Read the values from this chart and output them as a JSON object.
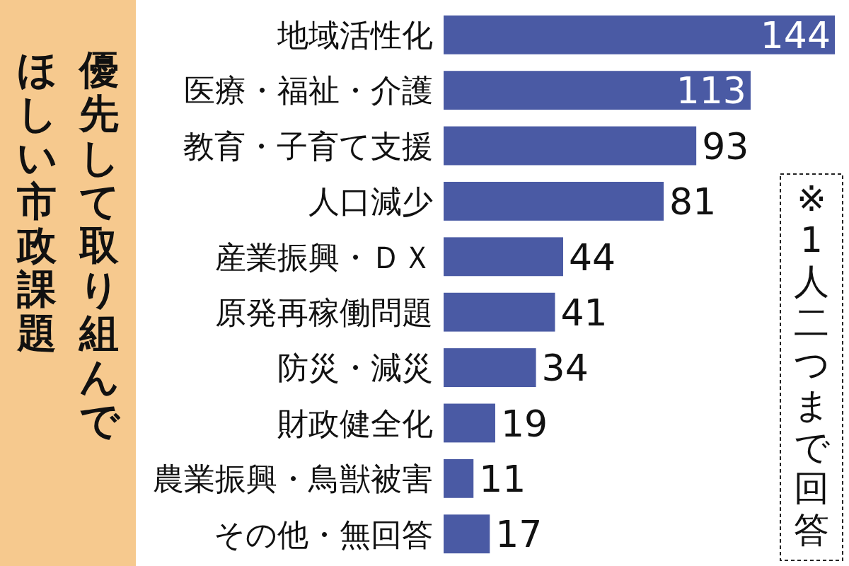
{
  "chart_data": {
    "type": "bar",
    "orientation": "horizontal",
    "title": "優先して取り組んで",
    "subtitle": "ほしい市政課題",
    "categories": [
      "地域活性化",
      "医療・福祉・介護",
      "教育・子育て支援",
      "人口減少",
      "産業振興・ＤＸ",
      "原発再稼働問題",
      "防災・減災",
      "財政健全化",
      "農業振興・鳥獣被害",
      "その他・無回答"
    ],
    "values": [
      144,
      113,
      93,
      81,
      44,
      41,
      34,
      19,
      11,
      17
    ],
    "color": "#4a5aa4",
    "data_labels": true,
    "annotations": [
      "※1人二つまで回答"
    ]
  }
}
